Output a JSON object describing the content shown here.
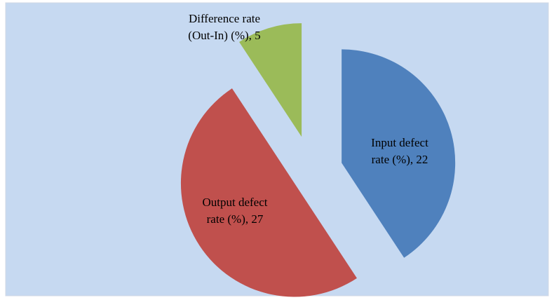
{
  "chart_data": {
    "type": "pie",
    "values": [
      22,
      27,
      5
    ],
    "value_labels": [
      "Input defect rate (%), 22",
      "Output defect rate (%), 27",
      "Difference rate (Out-In) (%), 5"
    ],
    "colors": [
      "#4f81bd",
      "#c0504d",
      "#9bbb59"
    ]
  }
}
